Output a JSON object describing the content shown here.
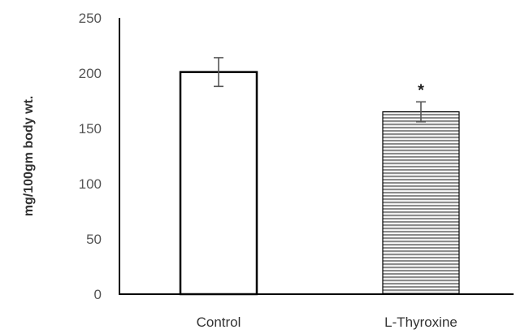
{
  "chart_data": {
    "type": "bar",
    "title": "",
    "xlabel": "",
    "ylabel": "mg/100gm body wt.",
    "ylim": [
      0,
      250
    ],
    "yticks": [
      0,
      50,
      100,
      150,
      200,
      250
    ],
    "categories": [
      "Control",
      "L-Thyroxine"
    ],
    "values": [
      201,
      165
    ],
    "errors": [
      13,
      9
    ],
    "annotations": [
      "",
      "*"
    ],
    "bar_fills": [
      "solid-white",
      "horizontal-stripes-gray"
    ],
    "colors": {
      "axis": "#000000",
      "bar_outline": "#000000",
      "stripe": "#8c8c8c",
      "error_bar": "#555555"
    },
    "grid": false,
    "legend": "none"
  }
}
